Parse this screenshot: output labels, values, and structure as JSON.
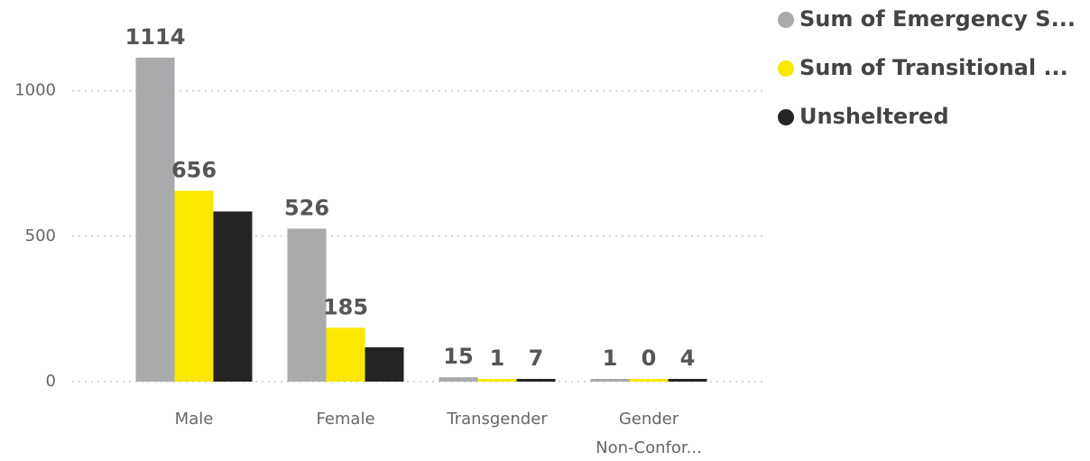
{
  "chart_data": {
    "type": "bar",
    "categories": [
      "Male",
      "Female",
      "Transgender",
      "Gender Non-Confor..."
    ],
    "series": [
      {
        "name": "Sum of Emergency S...",
        "color": "#a9aaac",
        "values": [
          1114,
          526,
          15,
          1
        ]
      },
      {
        "name": "Sum of Transitional ...",
        "color": "#fae800",
        "values": [
          656,
          185,
          1,
          0
        ]
      },
      {
        "name": "Unsheltered",
        "color": "#252423",
        "values": [
          585,
          118,
          7,
          4
        ],
        "value_labels": [
          null,
          null,
          "7",
          "4"
        ]
      }
    ],
    "ylim": [
      0,
      1250
    ],
    "yticks": [
      0,
      500,
      1000
    ],
    "grid": true,
    "legend": "top-right"
  }
}
